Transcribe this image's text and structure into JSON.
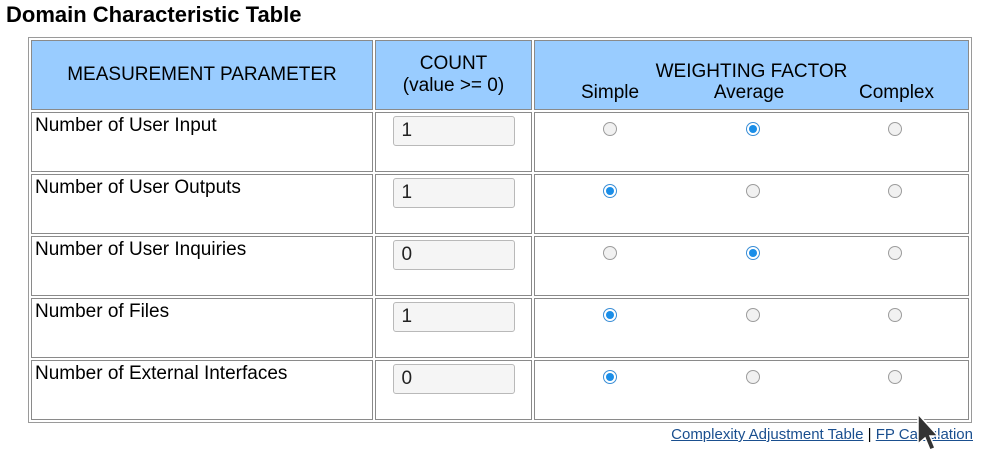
{
  "page_title": "Domain Characteristic Table",
  "table": {
    "headers": {
      "parameter": "MEASUREMENT PARAMETER",
      "count_line1": "COUNT",
      "count_line2": "(value >= 0)",
      "weighting": "WEIGHTING FACTOR",
      "simple": "Simple",
      "average": "Average",
      "complex": "Complex"
    },
    "rows": [
      {
        "label": "Number of User Input",
        "count": "1",
        "weight": "Average"
      },
      {
        "label": "Number of User Outputs",
        "count": "1",
        "weight": "Simple"
      },
      {
        "label": "Number of User Inquiries",
        "count": "0",
        "weight": "Average"
      },
      {
        "label": "Number of Files",
        "count": "1",
        "weight": "Simple"
      },
      {
        "label": "Number of External Interfaces",
        "count": "0",
        "weight": "Simple"
      }
    ]
  },
  "footer": {
    "link1": "Complexity Adjustment Table",
    "separator": "|",
    "link2": "FP Calculation"
  },
  "colors": {
    "header_bg": "#99ccff",
    "radio_checked": "#1a8ee8",
    "link": "#1a4f8f"
  }
}
